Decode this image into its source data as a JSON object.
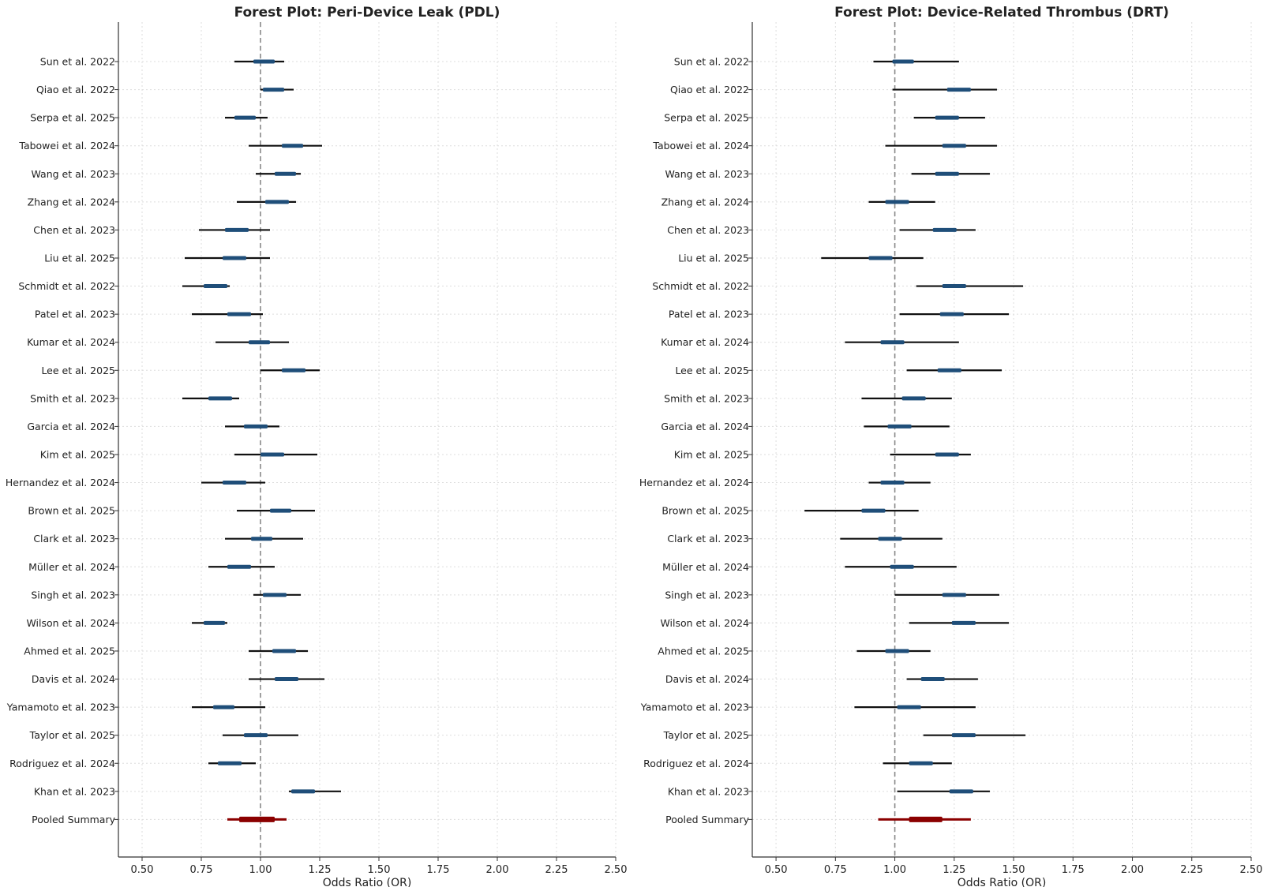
{
  "colors": {
    "study_bar": "#1f4e79",
    "study_line": "#111111",
    "pooled": "#8b0000",
    "reference_line": "#888888",
    "grid": "#dddddd",
    "axis": "#333333"
  },
  "chart_data": [
    {
      "type": "forest",
      "title": "Forest Plot: Peri-Device Leak (PDL)",
      "xlabel": "Odds Ratio (OR)",
      "ylabel": "",
      "xlim": [
        0.4,
        2.5
      ],
      "xticks": [
        0.5,
        0.75,
        1.0,
        1.25,
        1.5,
        1.75,
        2.0,
        2.25,
        2.5
      ],
      "xtick_labels": [
        "0.50",
        "0.75",
        "1.00",
        "1.25",
        "1.50",
        "1.75",
        "2.00",
        "2.25",
        "2.50"
      ],
      "reference_line": 1.0,
      "grid": true,
      "rows": [
        {
          "label": "Sun et al. 2022",
          "lower": 0.89,
          "upper": 1.1,
          "box_low": 0.97,
          "box_high": 1.06
        },
        {
          "label": "Qiao et al. 2022",
          "lower": 1.0,
          "upper": 1.14,
          "box_low": 1.01,
          "box_high": 1.1
        },
        {
          "label": "Serpa et al. 2025",
          "lower": 0.85,
          "upper": 1.03,
          "box_low": 0.89,
          "box_high": 0.98
        },
        {
          "label": "Tabowei et al. 2024",
          "lower": 0.95,
          "upper": 1.26,
          "box_low": 1.09,
          "box_high": 1.18
        },
        {
          "label": "Wang et al. 2023",
          "lower": 0.98,
          "upper": 1.17,
          "box_low": 1.06,
          "box_high": 1.15
        },
        {
          "label": "Zhang et al. 2024",
          "lower": 0.9,
          "upper": 1.15,
          "box_low": 1.02,
          "box_high": 1.12
        },
        {
          "label": "Chen et al. 2023",
          "lower": 0.74,
          "upper": 1.04,
          "box_low": 0.85,
          "box_high": 0.95
        },
        {
          "label": "Liu et al. 2025",
          "lower": 0.68,
          "upper": 1.04,
          "box_low": 0.84,
          "box_high": 0.94
        },
        {
          "label": "Schmidt et al. 2022",
          "lower": 0.67,
          "upper": 0.87,
          "box_low": 0.76,
          "box_high": 0.86
        },
        {
          "label": "Patel et al. 2023",
          "lower": 0.71,
          "upper": 1.01,
          "box_low": 0.86,
          "box_high": 0.96
        },
        {
          "label": "Kumar et al. 2024",
          "lower": 0.81,
          "upper": 1.12,
          "box_low": 0.95,
          "box_high": 1.04
        },
        {
          "label": "Lee et al. 2025",
          "lower": 1.0,
          "upper": 1.25,
          "box_low": 1.09,
          "box_high": 1.19
        },
        {
          "label": "Smith et al. 2023",
          "lower": 0.67,
          "upper": 0.91,
          "box_low": 0.78,
          "box_high": 0.88
        },
        {
          "label": "Garcia et al. 2024",
          "lower": 0.85,
          "upper": 1.08,
          "box_low": 0.93,
          "box_high": 1.03
        },
        {
          "label": "Kim et al. 2025",
          "lower": 0.89,
          "upper": 1.24,
          "box_low": 1.0,
          "box_high": 1.1
        },
        {
          "label": "Hernandez et al. 2024",
          "lower": 0.75,
          "upper": 1.02,
          "box_low": 0.84,
          "box_high": 0.94
        },
        {
          "label": "Brown et al. 2025",
          "lower": 0.9,
          "upper": 1.23,
          "box_low": 1.04,
          "box_high": 1.13
        },
        {
          "label": "Clark et al. 2023",
          "lower": 0.85,
          "upper": 1.18,
          "box_low": 0.96,
          "box_high": 1.05
        },
        {
          "label": "Müller et al. 2024",
          "lower": 0.78,
          "upper": 1.06,
          "box_low": 0.86,
          "box_high": 0.96
        },
        {
          "label": "Singh et al. 2023",
          "lower": 0.97,
          "upper": 1.17,
          "box_low": 1.01,
          "box_high": 1.11
        },
        {
          "label": "Wilson et al. 2024",
          "lower": 0.71,
          "upper": 0.86,
          "box_low": 0.76,
          "box_high": 0.85
        },
        {
          "label": "Ahmed et al. 2025",
          "lower": 0.95,
          "upper": 1.2,
          "box_low": 1.05,
          "box_high": 1.15
        },
        {
          "label": "Davis et al. 2024",
          "lower": 0.95,
          "upper": 1.27,
          "box_low": 1.06,
          "box_high": 1.16
        },
        {
          "label": "Yamamoto et al. 2023",
          "lower": 0.71,
          "upper": 1.02,
          "box_low": 0.8,
          "box_high": 0.89
        },
        {
          "label": "Taylor et al. 2025",
          "lower": 0.84,
          "upper": 1.16,
          "box_low": 0.93,
          "box_high": 1.03
        },
        {
          "label": "Rodriguez et al. 2024",
          "lower": 0.78,
          "upper": 0.98,
          "box_low": 0.82,
          "box_high": 0.92
        },
        {
          "label": "Khan et al. 2023",
          "lower": 1.12,
          "upper": 1.34,
          "box_low": 1.13,
          "box_high": 1.23
        },
        {
          "label": "Pooled Summary",
          "lower": 0.86,
          "upper": 1.11,
          "box_low": 0.91,
          "box_high": 1.06,
          "pooled": true
        }
      ]
    },
    {
      "type": "forest",
      "title": "Forest Plot: Device-Related Thrombus (DRT)",
      "xlabel": "Odds Ratio (OR)",
      "ylabel": "",
      "xlim": [
        0.4,
        2.5
      ],
      "xticks": [
        0.5,
        0.75,
        1.0,
        1.25,
        1.5,
        1.75,
        2.0,
        2.25,
        2.5
      ],
      "xtick_labels": [
        "0.50",
        "0.75",
        "1.00",
        "1.25",
        "1.50",
        "1.75",
        "2.00",
        "2.25",
        "2.50"
      ],
      "reference_line": 1.0,
      "grid": true,
      "rows": [
        {
          "label": "Sun et al. 2022",
          "lower": 0.91,
          "upper": 1.27,
          "box_low": 0.99,
          "box_high": 1.08
        },
        {
          "label": "Qiao et al. 2022",
          "lower": 0.99,
          "upper": 1.43,
          "box_low": 1.22,
          "box_high": 1.32
        },
        {
          "label": "Serpa et al. 2025",
          "lower": 1.08,
          "upper": 1.38,
          "box_low": 1.17,
          "box_high": 1.27
        },
        {
          "label": "Tabowei et al. 2024",
          "lower": 0.96,
          "upper": 1.43,
          "box_low": 1.2,
          "box_high": 1.3
        },
        {
          "label": "Wang et al. 2023",
          "lower": 1.07,
          "upper": 1.4,
          "box_low": 1.17,
          "box_high": 1.27
        },
        {
          "label": "Zhang et al. 2024",
          "lower": 0.89,
          "upper": 1.17,
          "box_low": 0.96,
          "box_high": 1.06
        },
        {
          "label": "Chen et al. 2023",
          "lower": 1.02,
          "upper": 1.34,
          "box_low": 1.16,
          "box_high": 1.26
        },
        {
          "label": "Liu et al. 2025",
          "lower": 0.69,
          "upper": 1.12,
          "box_low": 0.89,
          "box_high": 0.99
        },
        {
          "label": "Schmidt et al. 2022",
          "lower": 1.09,
          "upper": 1.54,
          "box_low": 1.2,
          "box_high": 1.3
        },
        {
          "label": "Patel et al. 2023",
          "lower": 1.02,
          "upper": 1.48,
          "box_low": 1.19,
          "box_high": 1.29
        },
        {
          "label": "Kumar et al. 2024",
          "lower": 0.79,
          "upper": 1.27,
          "box_low": 0.94,
          "box_high": 1.04
        },
        {
          "label": "Lee et al. 2025",
          "lower": 1.05,
          "upper": 1.45,
          "box_low": 1.18,
          "box_high": 1.28
        },
        {
          "label": "Smith et al. 2023",
          "lower": 0.86,
          "upper": 1.24,
          "box_low": 1.03,
          "box_high": 1.13
        },
        {
          "label": "Garcia et al. 2024",
          "lower": 0.87,
          "upper": 1.23,
          "box_low": 0.97,
          "box_high": 1.07
        },
        {
          "label": "Kim et al. 2025",
          "lower": 0.98,
          "upper": 1.32,
          "box_low": 1.17,
          "box_high": 1.27
        },
        {
          "label": "Hernandez et al. 2024",
          "lower": 0.89,
          "upper": 1.15,
          "box_low": 0.94,
          "box_high": 1.04
        },
        {
          "label": "Brown et al. 2025",
          "lower": 0.62,
          "upper": 1.1,
          "box_low": 0.86,
          "box_high": 0.96
        },
        {
          "label": "Clark et al. 2023",
          "lower": 0.77,
          "upper": 1.2,
          "box_low": 0.93,
          "box_high": 1.03
        },
        {
          "label": "Müller et al. 2024",
          "lower": 0.79,
          "upper": 1.26,
          "box_low": 0.98,
          "box_high": 1.08
        },
        {
          "label": "Singh et al. 2023",
          "lower": 1.0,
          "upper": 1.44,
          "box_low": 1.2,
          "box_high": 1.3
        },
        {
          "label": "Wilson et al. 2024",
          "lower": 1.06,
          "upper": 1.48,
          "box_low": 1.24,
          "box_high": 1.34
        },
        {
          "label": "Ahmed et al. 2025",
          "lower": 0.84,
          "upper": 1.15,
          "box_low": 0.96,
          "box_high": 1.06
        },
        {
          "label": "Davis et al. 2024",
          "lower": 1.05,
          "upper": 1.35,
          "box_low": 1.11,
          "box_high": 1.21
        },
        {
          "label": "Yamamoto et al. 2023",
          "lower": 0.83,
          "upper": 1.34,
          "box_low": 1.01,
          "box_high": 1.11
        },
        {
          "label": "Taylor et al. 2025",
          "lower": 1.12,
          "upper": 1.55,
          "box_low": 1.24,
          "box_high": 1.34
        },
        {
          "label": "Rodriguez et al. 2024",
          "lower": 0.95,
          "upper": 1.24,
          "box_low": 1.06,
          "box_high": 1.16
        },
        {
          "label": "Khan et al. 2023",
          "lower": 1.01,
          "upper": 1.4,
          "box_low": 1.23,
          "box_high": 1.33
        },
        {
          "label": "Pooled Summary",
          "lower": 0.93,
          "upper": 1.32,
          "box_low": 1.06,
          "box_high": 1.2,
          "pooled": true
        }
      ]
    }
  ]
}
